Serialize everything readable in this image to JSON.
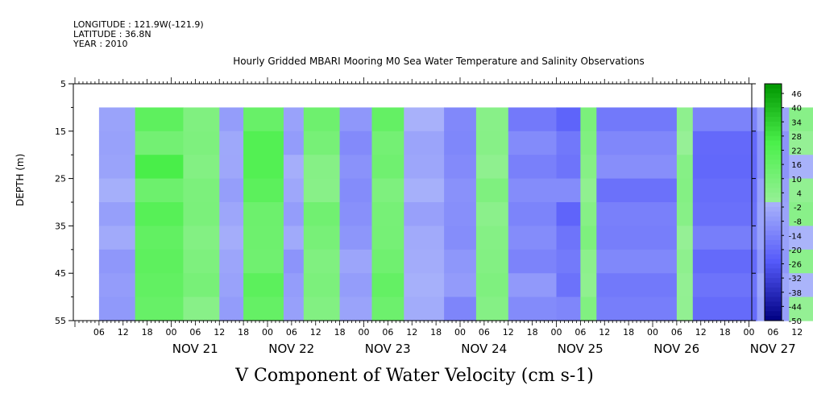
{
  "header": {
    "longitude": "LONGITUDE : 121.9W(-121.9)",
    "latitude": "LATITUDE : 36.8N",
    "year": "YEAR : 2010"
  },
  "chart_data": {
    "type": "heatmap",
    "title": "Hourly Gridded MBARI Mooring M0 Sea Water Temperature and Salinity Observations",
    "xlabel": "V Component of Water Velocity (cm s-1)",
    "ylabel": "DEPTH (m)",
    "ylim": [
      5,
      55
    ],
    "y_inverted": true,
    "y_ticks": [
      5,
      15,
      25,
      35,
      45,
      55
    ],
    "x_hour_ticks": [
      "06",
      "12",
      "18",
      "00",
      "06",
      "12",
      "18",
      "00",
      "06",
      "12",
      "18",
      "00",
      "06",
      "12",
      "18",
      "00",
      "06",
      "12",
      "18",
      "00",
      "06",
      "12",
      "18",
      "00",
      "06",
      "12",
      "18",
      "00",
      "06",
      "12",
      "18",
      "00"
    ],
    "x_day_labels": [
      "NOV 21",
      "NOV 22",
      "NOV 23",
      "NOV 24",
      "NOV 25",
      "NOV 26",
      "NOV 27"
    ],
    "data_depth_range_m": [
      10,
      55
    ],
    "data_time_range": [
      "2010-11-20T06:00",
      "2010-11-28T01:00"
    ],
    "colorbar": {
      "min": -50,
      "max": 50,
      "tick_labels": [
        "46",
        "40",
        "34",
        "28",
        "22",
        "16",
        "10",
        "4",
        "-2",
        "-8",
        "-14",
        "-20",
        "-26",
        "-32",
        "-38",
        "-44",
        "-50"
      ]
    },
    "dominant_sign_by_period": [
      {
        "start": "2010-11-20T06:00",
        "end": "2010-11-20T15:00",
        "value": -5
      },
      {
        "start": "2010-11-20T15:00",
        "end": "2010-11-21T03:00",
        "value": 18
      },
      {
        "start": "2010-11-21T03:00",
        "end": "2010-11-21T12:00",
        "value": 8
      },
      {
        "start": "2010-11-21T12:00",
        "end": "2010-11-21T18:00",
        "value": -4
      },
      {
        "start": "2010-11-21T18:00",
        "end": "2010-11-22T04:00",
        "value": 16
      },
      {
        "start": "2010-11-22T04:00",
        "end": "2010-11-22T09:00",
        "value": -6
      },
      {
        "start": "2010-11-22T09:00",
        "end": "2010-11-22T18:00",
        "value": 10
      },
      {
        "start": "2010-11-22T18:00",
        "end": "2010-11-23T02:00",
        "value": -8
      },
      {
        "start": "2010-11-23T02:00",
        "end": "2010-11-23T10:00",
        "value": 14
      },
      {
        "start": "2010-11-23T10:00",
        "end": "2010-11-23T20:00",
        "value": -4
      },
      {
        "start": "2010-11-23T20:00",
        "end": "2010-11-24T04:00",
        "value": -10
      },
      {
        "start": "2010-11-24T04:00",
        "end": "2010-11-24T12:00",
        "value": 6
      },
      {
        "start": "2010-11-24T12:00",
        "end": "2010-11-25T00:00",
        "value": -12
      },
      {
        "start": "2010-11-25T00:00",
        "end": "2010-11-25T06:00",
        "value": -16
      },
      {
        "start": "2010-11-25T06:00",
        "end": "2010-11-25T10:00",
        "value": 5
      },
      {
        "start": "2010-11-25T10:00",
        "end": "2010-11-26T06:00",
        "value": -15
      },
      {
        "start": "2010-11-26T06:00",
        "end": "2010-11-26T10:00",
        "value": 3
      },
      {
        "start": "2010-11-26T10:00",
        "end": "2010-11-27T02:00",
        "value": -18
      },
      {
        "start": "2010-11-27T02:00",
        "end": "2010-11-27T10:00",
        "value": -6
      },
      {
        "start": "2010-11-27T10:00",
        "end": "2010-11-27T22:00",
        "value": 2
      },
      {
        "start": "2010-11-27T22:00",
        "end": "2010-11-28T01:00",
        "value": 8
      }
    ]
  }
}
